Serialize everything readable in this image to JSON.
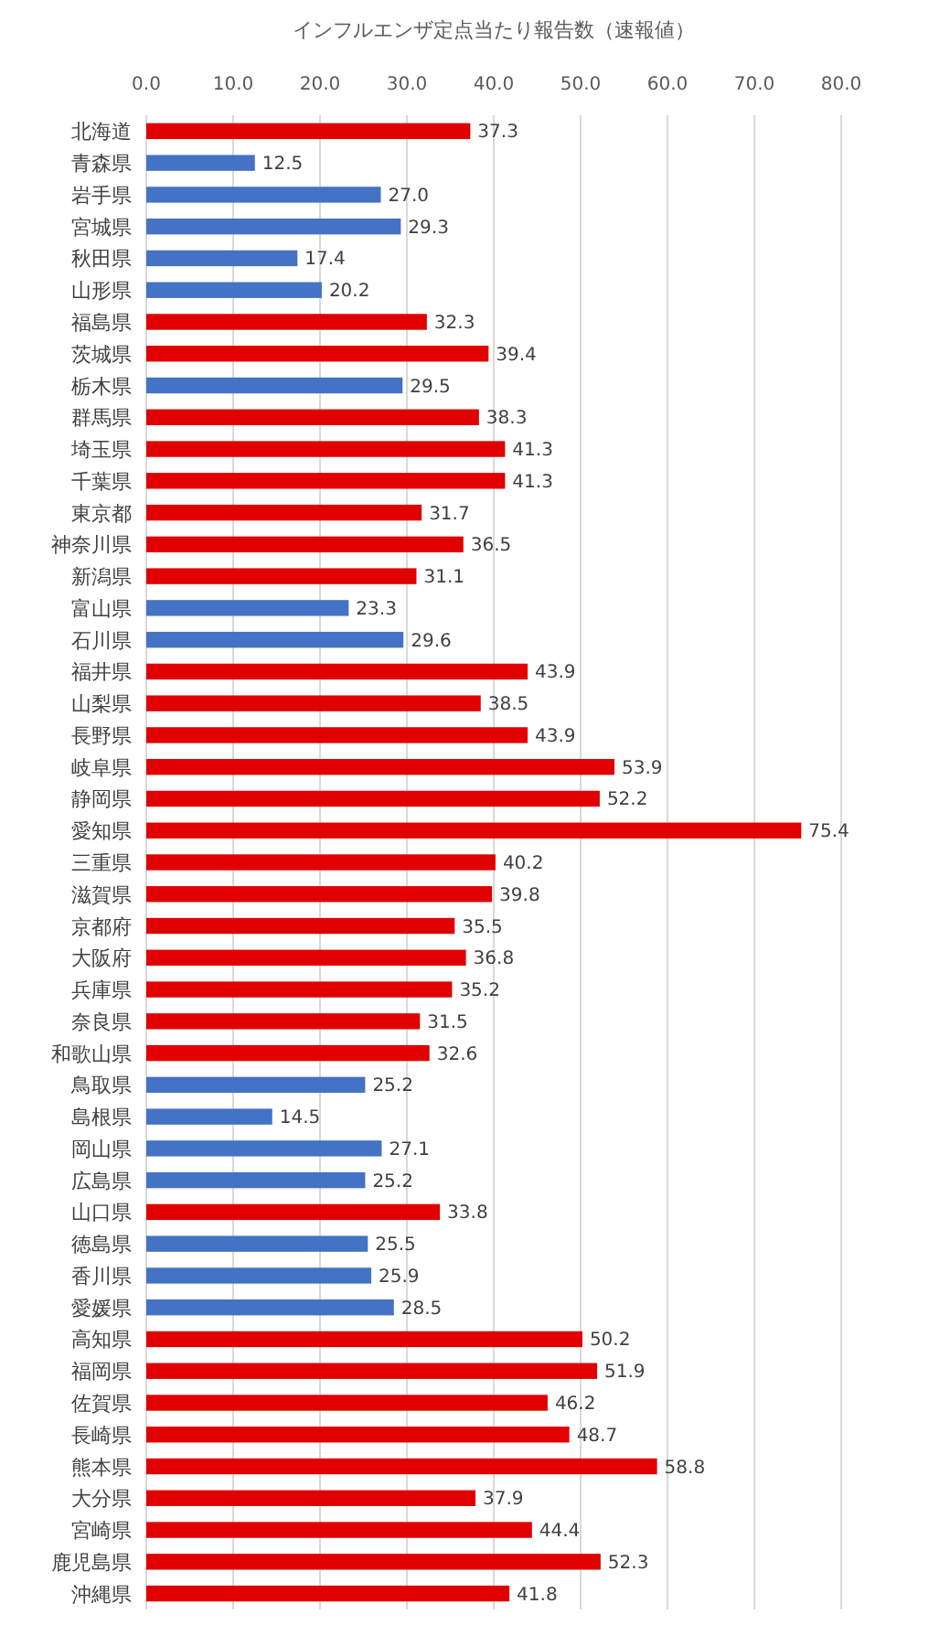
{
  "chart_data": {
    "type": "bar",
    "orientation": "horizontal",
    "title": "インフルエンザ定点当たり報告数（速報値）",
    "categories": [
      "北海道",
      "青森県",
      "岩手県",
      "宮城県",
      "秋田県",
      "山形県",
      "福島県",
      "茨城県",
      "栃木県",
      "群馬県",
      "埼玉県",
      "千葉県",
      "東京都",
      "神奈川県",
      "新潟県",
      "富山県",
      "石川県",
      "福井県",
      "山梨県",
      "長野県",
      "岐阜県",
      "静岡県",
      "愛知県",
      "三重県",
      "滋賀県",
      "京都府",
      "大阪府",
      "兵庫県",
      "奈良県",
      "和歌山県",
      "鳥取県",
      "島根県",
      "岡山県",
      "広島県",
      "山口県",
      "徳島県",
      "香川県",
      "愛媛県",
      "高知県",
      "福岡県",
      "佐賀県",
      "長崎県",
      "熊本県",
      "大分県",
      "宮崎県",
      "鹿児島県",
      "沖縄県"
    ],
    "values": [
      37.3,
      12.5,
      27.0,
      29.3,
      17.4,
      20.2,
      32.3,
      39.4,
      29.5,
      38.3,
      41.3,
      41.3,
      31.7,
      36.5,
      31.1,
      23.3,
      29.6,
      43.9,
      38.5,
      43.9,
      53.9,
      52.2,
      75.4,
      40.2,
      39.8,
      35.5,
      36.8,
      35.2,
      31.5,
      32.6,
      25.2,
      14.5,
      27.1,
      25.2,
      33.8,
      25.5,
      25.9,
      28.5,
      50.2,
      51.9,
      46.2,
      48.7,
      58.8,
      37.9,
      44.4,
      52.3,
      41.8
    ],
    "value_labels": [
      "37.3",
      "12.5",
      "27.0",
      "29.3",
      "17.4",
      "20.2",
      "32.3",
      "39.4",
      "29.5",
      "38.3",
      "41.3",
      "41.3",
      "31.7",
      "36.5",
      "31.1",
      "23.3",
      "29.6",
      "43.9",
      "38.5",
      "43.9",
      "53.9",
      "52.2",
      "75.4",
      "40.2",
      "39.8",
      "35.5",
      "36.8",
      "35.2",
      "31.5",
      "32.6",
      "25.2",
      "14.5",
      "27.1",
      "25.2",
      "33.8",
      "25.5",
      "25.9",
      "28.5",
      "50.2",
      "51.9",
      "46.2",
      "48.7",
      "58.8",
      "37.9",
      "44.4",
      "52.3",
      "41.8"
    ],
    "colors": [
      "#e00000",
      "#4472c4",
      "#4472c4",
      "#4472c4",
      "#4472c4",
      "#4472c4",
      "#e00000",
      "#e00000",
      "#4472c4",
      "#e00000",
      "#e00000",
      "#e00000",
      "#e00000",
      "#e00000",
      "#e00000",
      "#4472c4",
      "#4472c4",
      "#e00000",
      "#e00000",
      "#e00000",
      "#e00000",
      "#e00000",
      "#e00000",
      "#e00000",
      "#e00000",
      "#e00000",
      "#e00000",
      "#e00000",
      "#e00000",
      "#e00000",
      "#4472c4",
      "#4472c4",
      "#4472c4",
      "#4472c4",
      "#e00000",
      "#4472c4",
      "#4472c4",
      "#4472c4",
      "#e00000",
      "#e00000",
      "#e00000",
      "#e00000",
      "#e00000",
      "#e00000",
      "#e00000",
      "#e00000",
      "#e00000"
    ],
    "xlim": [
      0,
      80
    ],
    "xticks": [
      {
        "value": 0,
        "label": "0.0"
      },
      {
        "value": 10,
        "label": "10.0"
      },
      {
        "value": 20,
        "label": "20.0"
      },
      {
        "value": 30,
        "label": "30.0"
      },
      {
        "value": 40,
        "label": "40.0"
      },
      {
        "value": 50,
        "label": "50.0"
      },
      {
        "value": 60,
        "label": "60.0"
      },
      {
        "value": 70,
        "label": "70.0"
      },
      {
        "value": 80,
        "label": "80.0"
      }
    ],
    "grid": "x"
  }
}
